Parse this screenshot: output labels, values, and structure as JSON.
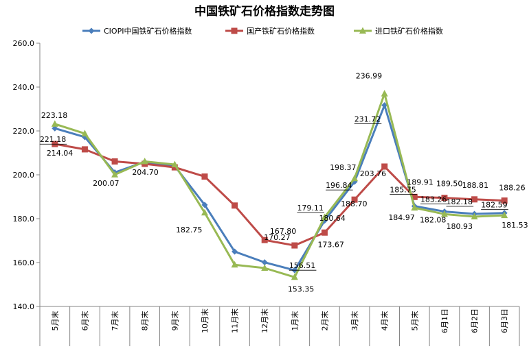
{
  "chart_data": {
    "type": "line",
    "title": "中国铁矿石价格指数走势图",
    "categories": [
      "5月末",
      "6月末",
      "7月末",
      "8月末",
      "9月末",
      "10月末",
      "11月末",
      "12月末",
      "1月末",
      "2月末",
      "3月末",
      "4月末",
      "5月末",
      "6月1日",
      "6月2日",
      "6月3日"
    ],
    "ylim": [
      140,
      260
    ],
    "ytick_labels": [
      "140.0",
      "160.0",
      "180.0",
      "200.0",
      "220.0",
      "240.0",
      "260.0"
    ],
    "grid": false,
    "legend": "top",
    "series": [
      {
        "name": "CIOPI中国铁矿石价格指数",
        "color": "#4a7ebb",
        "marker": "diamond",
        "values": [
          221.18,
          217.2,
          201.1,
          205.9,
          204.0,
          186.3,
          165.0,
          160.1,
          156.51,
          179.11,
          196.84,
          231.72,
          185.75,
          183.26,
          182.18,
          182.59
        ]
      },
      {
        "name": "国产铁矿石价格指数",
        "color": "#be4b48",
        "marker": "square",
        "values": [
          214.04,
          211.6,
          206.1,
          205.0,
          203.4,
          199.2,
          186.0,
          170.27,
          167.8,
          173.67,
          188.7,
          203.76,
          189.91,
          189.5,
          188.81,
          188.26
        ]
      },
      {
        "name": "进口铁矿石价格指数",
        "color": "#98b954",
        "marker": "triangle",
        "values": [
          223.18,
          218.8,
          200.07,
          206.1,
          204.7,
          182.75,
          159.0,
          157.5,
          153.35,
          180.64,
          198.37,
          236.99,
          184.97,
          182.08,
          180.93,
          181.53
        ]
      }
    ],
    "data_labels": [
      {
        "series": 2,
        "index": 0,
        "text": "223.18"
      },
      {
        "series": 0,
        "index": 0,
        "text": "221.18"
      },
      {
        "series": 1,
        "index": 0,
        "text": "214.04"
      },
      {
        "series": 2,
        "index": 2,
        "text": "200.07"
      },
      {
        "series": 2,
        "index": 4,
        "text": "204.70"
      },
      {
        "series": 2,
        "index": 5,
        "text": "182.75"
      },
      {
        "series": 1,
        "index": 7,
        "text": "170.27"
      },
      {
        "series": 1,
        "index": 8,
        "text": "167.80"
      },
      {
        "series": 0,
        "index": 8,
        "text": "156.51"
      },
      {
        "series": 2,
        "index": 8,
        "text": "153.35"
      },
      {
        "series": 0,
        "index": 9,
        "text": "179.11"
      },
      {
        "series": 2,
        "index": 9,
        "text": "180.64"
      },
      {
        "series": 1,
        "index": 9,
        "text": "173.67"
      },
      {
        "series": 2,
        "index": 10,
        "text": "198.37"
      },
      {
        "series": 0,
        "index": 10,
        "text": "196.84"
      },
      {
        "series": 1,
        "index": 10,
        "text": "188.70"
      },
      {
        "series": 2,
        "index": 11,
        "text": "236.99"
      },
      {
        "series": 0,
        "index": 11,
        "text": "231.72"
      },
      {
        "series": 1,
        "index": 11,
        "text": "203.76"
      },
      {
        "series": 1,
        "index": 12,
        "text": "189.91"
      },
      {
        "series": 0,
        "index": 12,
        "text": "185.75"
      },
      {
        "series": 2,
        "index": 12,
        "text": "184.97"
      },
      {
        "series": 1,
        "index": 13,
        "text": "189.50"
      },
      {
        "series": 0,
        "index": 13,
        "text": "183.26"
      },
      {
        "series": 2,
        "index": 13,
        "text": "182.08"
      },
      {
        "series": 1,
        "index": 14,
        "text": "188.81"
      },
      {
        "series": 0,
        "index": 14,
        "text": "182.18"
      },
      {
        "series": 2,
        "index": 14,
        "text": "180.93"
      },
      {
        "series": 1,
        "index": 15,
        "text": "188.26"
      },
      {
        "series": 0,
        "index": 15,
        "text": "182.59"
      },
      {
        "series": 2,
        "index": 15,
        "text": "181.53"
      }
    ]
  }
}
